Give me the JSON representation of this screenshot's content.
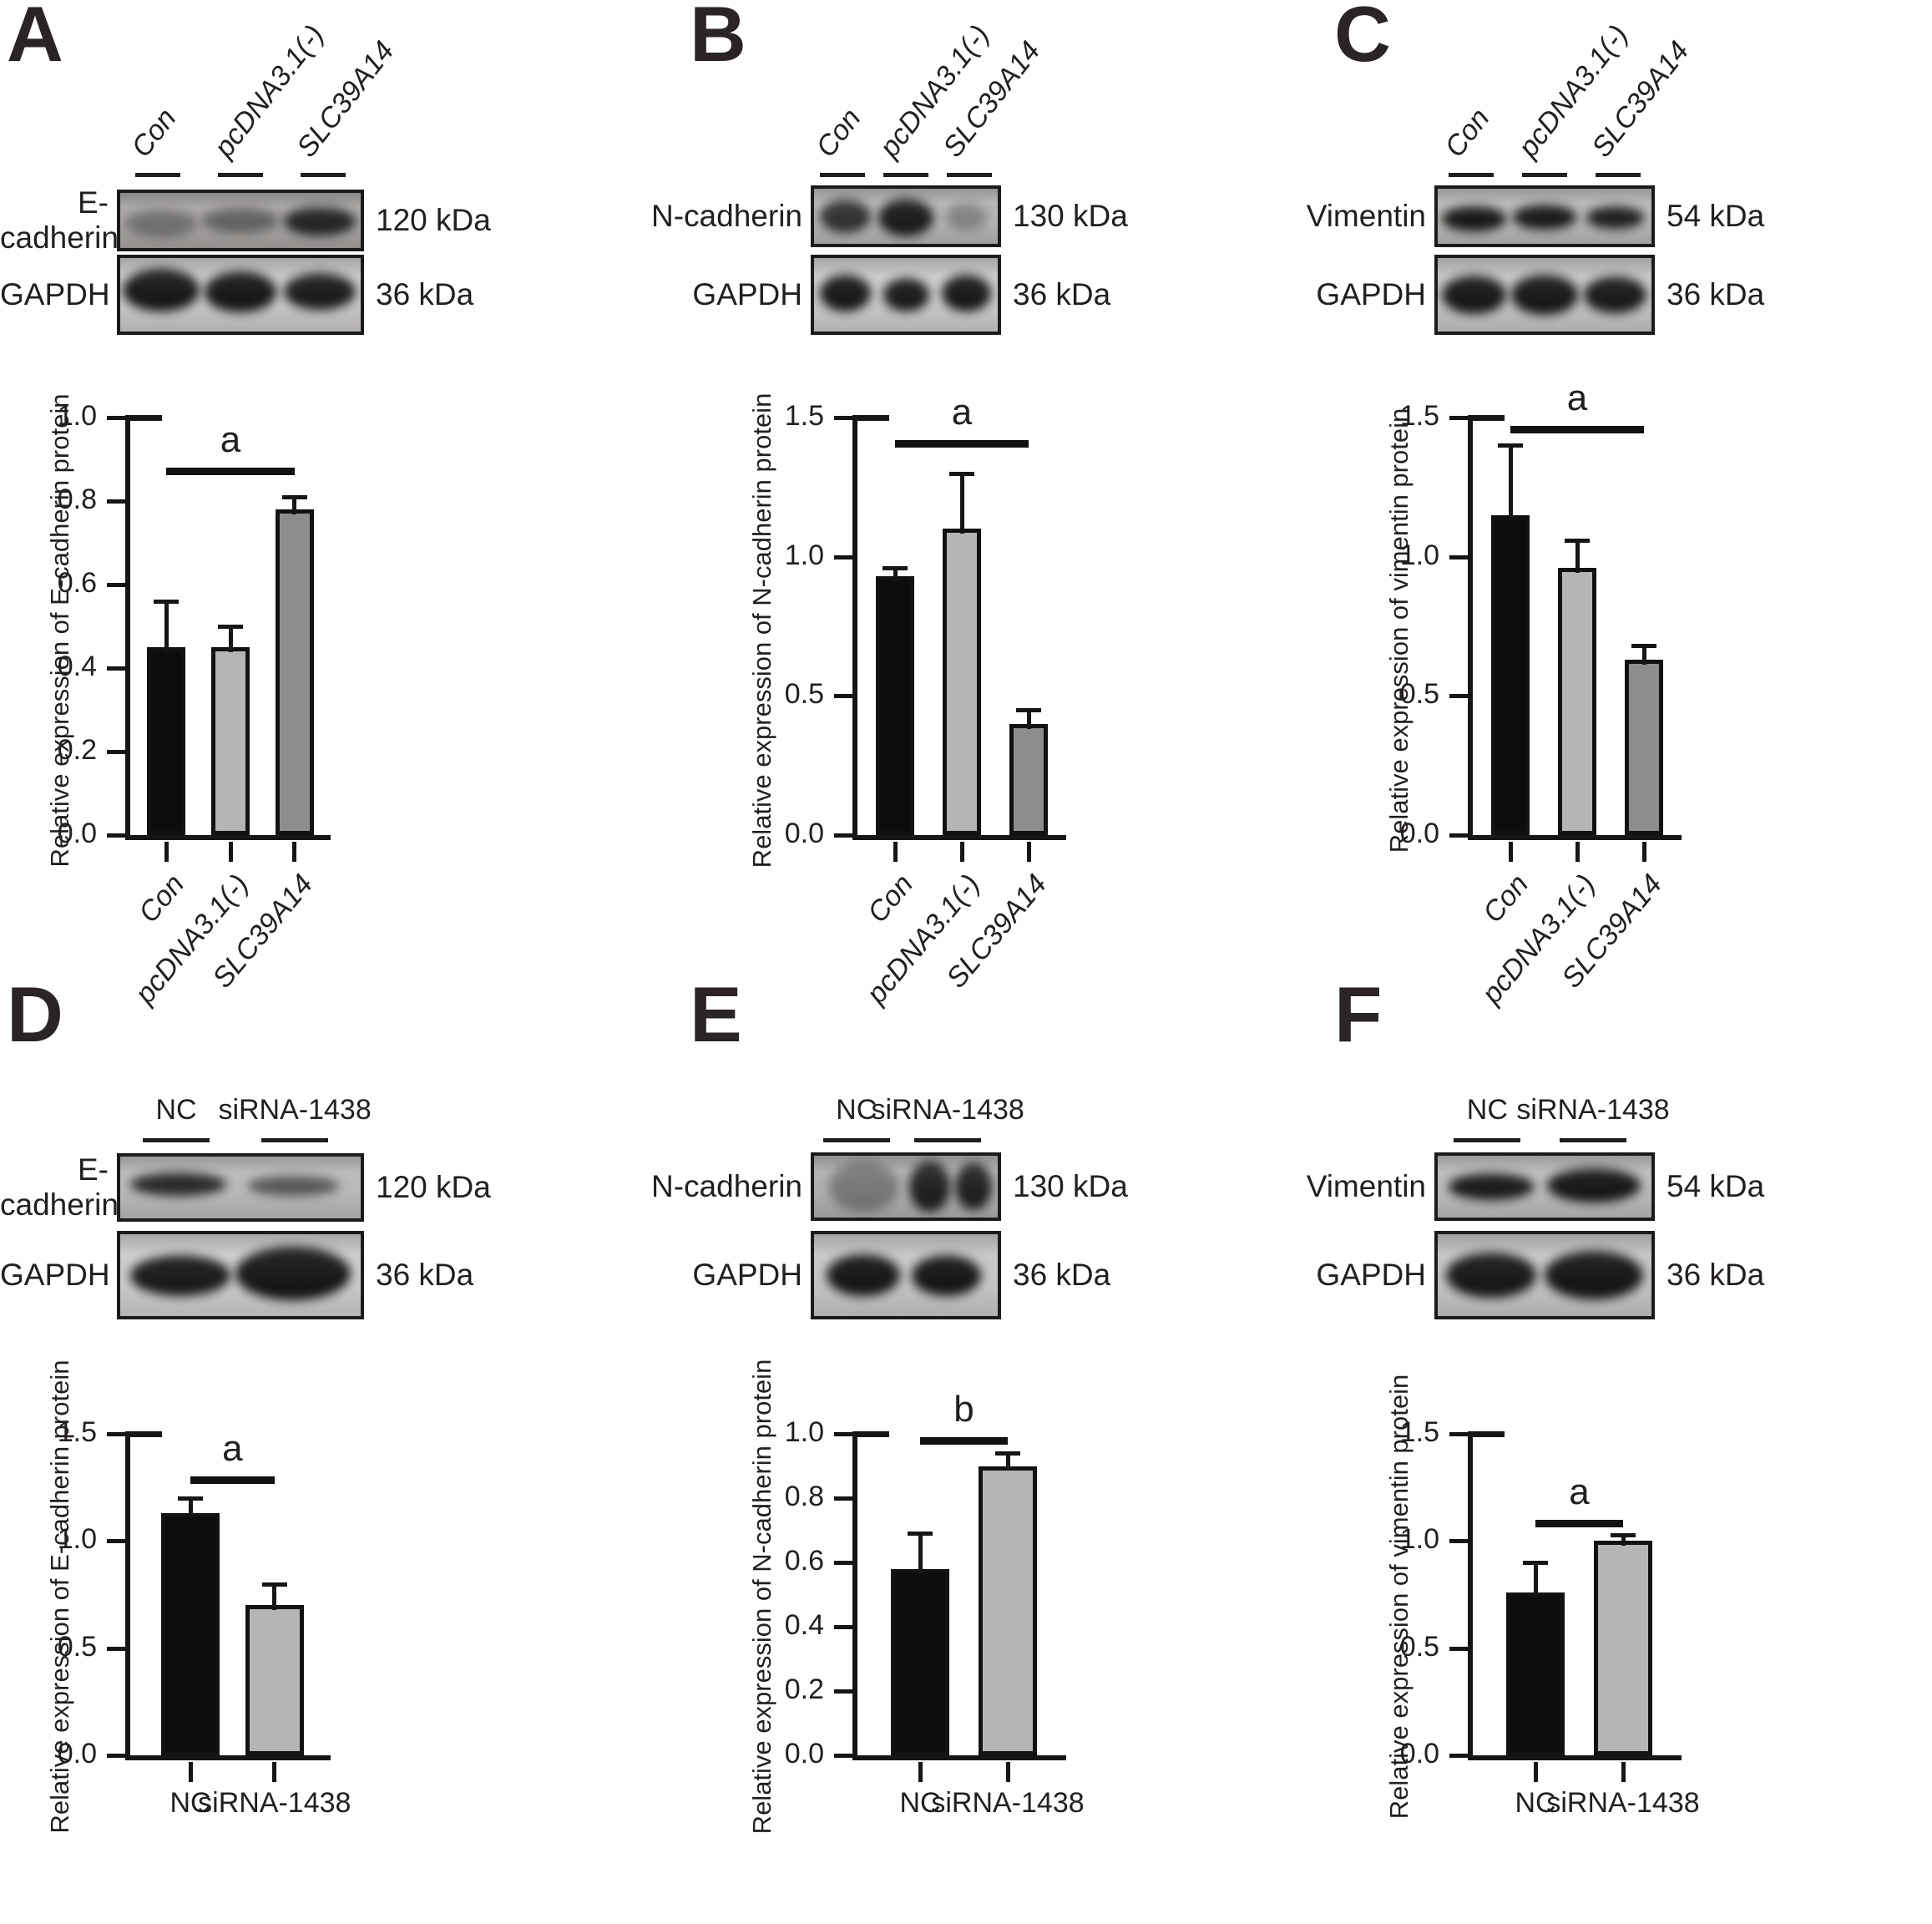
{
  "figure": {
    "panels": [
      {
        "id": "A",
        "lane_labels": [
          "Con",
          "pcDNA3.1(-)",
          "SLC39A14"
        ],
        "lane_style": "rotated",
        "blots": [
          {
            "protein": "E-cadherin",
            "kda": "120 kDa",
            "bg": "#a29f9d",
            "bands": [
              {
                "c": 0.17,
                "y": 0.55,
                "w": 0.3,
                "h": 0.5,
                "o": 0.35
              },
              {
                "c": 0.5,
                "y": 0.5,
                "w": 0.32,
                "h": 0.46,
                "o": 0.45
              },
              {
                "c": 0.83,
                "y": 0.52,
                "w": 0.3,
                "h": 0.52,
                "o": 0.88
              }
            ]
          },
          {
            "protein": "GAPDH",
            "kda": "36 kDa",
            "bg": "#c6c4c2",
            "bands": [
              {
                "c": 0.17,
                "y": 0.44,
                "w": 0.32,
                "h": 0.58,
                "o": 0.97
              },
              {
                "c": 0.5,
                "y": 0.46,
                "w": 0.3,
                "h": 0.55,
                "o": 0.97
              },
              {
                "c": 0.83,
                "y": 0.46,
                "w": 0.3,
                "h": 0.5,
                "o": 0.95
              }
            ]
          }
        ]
      },
      {
        "id": "B",
        "lane_labels": [
          "Con",
          "pcDNA3.1(-)",
          "SLC39A14"
        ],
        "lane_style": "rotated",
        "blots": [
          {
            "protein": "N-cadherin",
            "kda": "130 kDa",
            "bg": "#b2b0ae",
            "bands": [
              {
                "c": 0.17,
                "y": 0.5,
                "w": 0.28,
                "h": 0.62,
                "o": 0.8
              },
              {
                "c": 0.5,
                "y": 0.52,
                "w": 0.3,
                "h": 0.68,
                "o": 0.93
              },
              {
                "c": 0.83,
                "y": 0.5,
                "w": 0.22,
                "h": 0.5,
                "o": 0.3
              }
            ]
          },
          {
            "protein": "GAPDH",
            "kda": "36 kDa",
            "bg": "#c8c6c4",
            "bands": [
              {
                "c": 0.17,
                "y": 0.48,
                "w": 0.28,
                "h": 0.5,
                "o": 0.96
              },
              {
                "c": 0.5,
                "y": 0.5,
                "w": 0.25,
                "h": 0.45,
                "o": 0.95
              },
              {
                "c": 0.83,
                "y": 0.48,
                "w": 0.27,
                "h": 0.5,
                "o": 0.96
              }
            ]
          }
        ]
      },
      {
        "id": "C",
        "lane_labels": [
          "Con",
          "pcDNA3.1(-)",
          "SLC39A14"
        ],
        "lane_style": "rotated",
        "blots": [
          {
            "protein": "Vimentin",
            "kda": "54 kDa",
            "bg": "#b4b2b0",
            "bands": [
              {
                "c": 0.17,
                "y": 0.55,
                "w": 0.3,
                "h": 0.45,
                "o": 0.96
              },
              {
                "c": 0.5,
                "y": 0.52,
                "w": 0.3,
                "h": 0.45,
                "o": 0.95
              },
              {
                "c": 0.83,
                "y": 0.52,
                "w": 0.27,
                "h": 0.4,
                "o": 0.92
              }
            ]
          },
          {
            "protein": "GAPDH",
            "kda": "36 kDa",
            "bg": "#c2c0be",
            "bands": [
              {
                "c": 0.17,
                "y": 0.5,
                "w": 0.3,
                "h": 0.52,
                "o": 0.96
              },
              {
                "c": 0.5,
                "y": 0.5,
                "w": 0.31,
                "h": 0.54,
                "o": 0.96
              },
              {
                "c": 0.83,
                "y": 0.5,
                "w": 0.29,
                "h": 0.5,
                "o": 0.95
              }
            ]
          }
        ]
      },
      {
        "id": "D",
        "lane_labels": [
          "NC",
          "siRNA-1438"
        ],
        "lane_style": "horizontal",
        "blots": [
          {
            "protein": "E-cadherin",
            "kda": "120 kDa",
            "bg": "#b6b4b2",
            "bands": [
              {
                "c": 0.24,
                "y": 0.45,
                "w": 0.4,
                "h": 0.38,
                "o": 0.88
              },
              {
                "c": 0.72,
                "y": 0.47,
                "w": 0.38,
                "h": 0.32,
                "o": 0.6
              }
            ]
          },
          {
            "protein": "GAPDH",
            "kda": "36 kDa",
            "bg": "#cac8c6",
            "bands": [
              {
                "c": 0.25,
                "y": 0.5,
                "w": 0.42,
                "h": 0.5,
                "o": 0.95
              },
              {
                "c": 0.72,
                "y": 0.48,
                "w": 0.48,
                "h": 0.66,
                "o": 0.97
              }
            ]
          }
        ]
      },
      {
        "id": "E",
        "lane_labels": [
          "NC",
          "siRNA-1438"
        ],
        "lane_style": "horizontal",
        "blots": [
          {
            "protein": "N-cadherin",
            "kda": "130 kDa",
            "bg": "#acaaa8",
            "bands": [
              {
                "c": 0.27,
                "y": 0.5,
                "w": 0.38,
                "h": 0.8,
                "o": 0.35
              },
              {
                "c": 0.63,
                "y": 0.5,
                "w": 0.22,
                "h": 0.8,
                "o": 0.9
              },
              {
                "c": 0.87,
                "y": 0.5,
                "w": 0.2,
                "h": 0.75,
                "o": 0.9
              }
            ]
          },
          {
            "protein": "GAPDH",
            "kda": "36 kDa",
            "bg": "#c4c2c0",
            "bands": [
              {
                "c": 0.27,
                "y": 0.5,
                "w": 0.4,
                "h": 0.52,
                "o": 0.97
              },
              {
                "c": 0.72,
                "y": 0.5,
                "w": 0.38,
                "h": 0.5,
                "o": 0.97
              }
            ]
          }
        ]
      },
      {
        "id": "F",
        "lane_labels": [
          "NC",
          "siRNA-1438"
        ],
        "lane_style": "horizontal",
        "blots": [
          {
            "protein": "Vimentin",
            "kda": "54 kDa",
            "bg": "#b8b6b4",
            "bands": [
              {
                "c": 0.25,
                "y": 0.5,
                "w": 0.4,
                "h": 0.42,
                "o": 0.95
              },
              {
                "c": 0.73,
                "y": 0.48,
                "w": 0.44,
                "h": 0.56,
                "o": 0.97
              }
            ]
          },
          {
            "protein": "GAPDH",
            "kda": "36 kDa",
            "bg": "#c2c0be",
            "bands": [
              {
                "c": 0.25,
                "y": 0.5,
                "w": 0.42,
                "h": 0.56,
                "o": 0.96
              },
              {
                "c": 0.73,
                "y": 0.5,
                "w": 0.46,
                "h": 0.6,
                "o": 0.97
              }
            ]
          }
        ]
      }
    ]
  },
  "chart_data": [
    {
      "type": "bar",
      "panel": "A",
      "ylabel": "Relative expression of E-cadherin protein",
      "categories": [
        "Con",
        "pcDNA3.1(-)",
        "SLC39A14"
      ],
      "values": [
        0.45,
        0.45,
        0.78
      ],
      "errors": [
        0.11,
        0.05,
        0.03
      ],
      "ylim": [
        0,
        1.0
      ],
      "yticks": [
        0.0,
        0.2,
        0.4,
        0.6,
        0.8,
        1.0
      ],
      "bar_colors": [
        "#0d0b0b",
        "#b5b5b5",
        "#8d8d8d"
      ],
      "sig": {
        "label": "a",
        "from": 0,
        "to": 2,
        "y": 0.88
      },
      "xtick_style": "rotated",
      "grid": false,
      "legend": null
    },
    {
      "type": "bar",
      "panel": "B",
      "ylabel": "Relative expression of N-cadherin protein",
      "categories": [
        "Con",
        "pcDNA3.1(-)",
        "SLC39A14"
      ],
      "values": [
        0.93,
        1.1,
        0.4
      ],
      "errors": [
        0.03,
        0.2,
        0.05
      ],
      "ylim": [
        0,
        1.5
      ],
      "yticks": [
        0.0,
        0.5,
        1.0,
        1.5
      ],
      "bar_colors": [
        "#0d0b0b",
        "#b5b5b5",
        "#8d8d8d"
      ],
      "sig": {
        "label": "a",
        "from": 0,
        "to": 2,
        "y": 1.42
      },
      "xtick_style": "rotated",
      "grid": false,
      "legend": null
    },
    {
      "type": "bar",
      "panel": "C",
      "ylabel": "Relative expression of vimentin protein",
      "categories": [
        "Con",
        "pcDNA3.1(-)",
        "SLC39A14"
      ],
      "values": [
        1.15,
        0.96,
        0.63
      ],
      "errors": [
        0.25,
        0.1,
        0.05
      ],
      "ylim": [
        0,
        1.5
      ],
      "yticks": [
        0.0,
        0.5,
        1.0,
        1.5
      ],
      "bar_colors": [
        "#0d0b0b",
        "#b5b5b5",
        "#8d8d8d"
      ],
      "sig": {
        "label": "a",
        "from": 0,
        "to": 2,
        "y": 1.47
      },
      "xtick_style": "rotated",
      "grid": false,
      "legend": null
    },
    {
      "type": "bar",
      "panel": "D",
      "ylabel": "Relative expression of E-cadherin protein",
      "categories": [
        "NC",
        "siRNA-1438"
      ],
      "values": [
        1.13,
        0.7
      ],
      "errors": [
        0.07,
        0.1
      ],
      "ylim": [
        0,
        1.5
      ],
      "yticks": [
        0.0,
        0.5,
        1.0,
        1.5
      ],
      "bar_colors": [
        "#0d0b0b",
        "#b5b5b5"
      ],
      "sig": {
        "label": "a",
        "from": 0,
        "to": 1,
        "y": 1.3
      },
      "xtick_style": "horizontal",
      "grid": false,
      "legend": null
    },
    {
      "type": "bar",
      "panel": "E",
      "ylabel": "Relative expression of N-cadherin protein",
      "categories": [
        "NC",
        "siRNA-1438"
      ],
      "values": [
        0.58,
        0.9
      ],
      "errors": [
        0.11,
        0.04
      ],
      "ylim": [
        0,
        1.0
      ],
      "yticks": [
        0.0,
        0.2,
        0.4,
        0.6,
        0.8,
        1.0
      ],
      "bar_colors": [
        "#0d0b0b",
        "#b5b5b5"
      ],
      "sig": {
        "label": "b",
        "from": 0,
        "to": 1,
        "y": 0.99
      },
      "xtick_style": "horizontal",
      "grid": false,
      "legend": null
    },
    {
      "type": "bar",
      "panel": "F",
      "ylabel": "Relative expression of vimentin protein",
      "categories": [
        "NC",
        "siRNA-1438"
      ],
      "values": [
        0.76,
        1.0
      ],
      "errors": [
        0.14,
        0.03
      ],
      "ylim": [
        0,
        1.5
      ],
      "yticks": [
        0.0,
        0.5,
        1.0,
        1.5
      ],
      "bar_colors": [
        "#0d0b0b",
        "#b5b5b5"
      ],
      "sig": {
        "label": "a",
        "from": 0,
        "to": 1,
        "y": 1.1
      },
      "xtick_style": "horizontal",
      "grid": false,
      "legend": null
    }
  ]
}
